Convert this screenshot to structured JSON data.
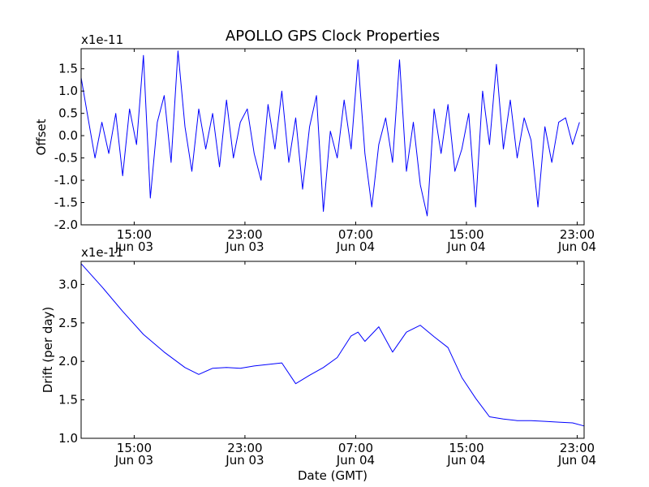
{
  "chart_data": [
    {
      "type": "line",
      "title": "APOLLO GPS Clock Properties",
      "ylabel": "Offset",
      "xlabel": "",
      "y_scale_label": "x1e-11",
      "x_ticks": [
        {
          "time": "15:00",
          "day": "Jun 03"
        },
        {
          "time": "23:00",
          "day": "Jun 03"
        },
        {
          "time": "07:00",
          "day": "Jun 04"
        },
        {
          "time": "15:00",
          "day": "Jun 04"
        },
        {
          "time": "23:00",
          "day": "Jun 04"
        }
      ],
      "y_ticks": [
        "1.5",
        "1.0",
        "0.5",
        "0.0",
        "-0.5",
        "-1.0",
        "-1.5",
        "-2.0"
      ],
      "y_tick_values": [
        1.5,
        1.0,
        0.5,
        0.0,
        -0.5,
        -1.0,
        -1.5,
        -2.0
      ],
      "ylim": [
        -2.0,
        1.95
      ],
      "xlim": [
        "2011-06-03T11:10",
        "2011-06-04T23:30"
      ],
      "series": [
        {
          "color": "#0000ff",
          "x": [
            "2011-06-03T11:10",
            "2011-06-03T11:40",
            "2011-06-03T12:10",
            "2011-06-03T12:40",
            "2011-06-03T13:10",
            "2011-06-03T13:40",
            "2011-06-03T14:10",
            "2011-06-03T14:40",
            "2011-06-03T15:10",
            "2011-06-03T15:40",
            "2011-06-03T16:10",
            "2011-06-03T16:40",
            "2011-06-03T17:10",
            "2011-06-03T17:40",
            "2011-06-03T18:10",
            "2011-06-03T18:40",
            "2011-06-03T19:10",
            "2011-06-03T19:40",
            "2011-06-03T20:10",
            "2011-06-03T20:40",
            "2011-06-03T21:10",
            "2011-06-03T21:40",
            "2011-06-03T22:10",
            "2011-06-03T22:40",
            "2011-06-03T23:10",
            "2011-06-03T23:40",
            "2011-06-04T00:10",
            "2011-06-04T00:40",
            "2011-06-04T01:10",
            "2011-06-04T01:40",
            "2011-06-04T02:10",
            "2011-06-04T02:40",
            "2011-06-04T03:10",
            "2011-06-04T03:40",
            "2011-06-04T04:10",
            "2011-06-04T04:40",
            "2011-06-04T05:10",
            "2011-06-04T05:40",
            "2011-06-04T06:10",
            "2011-06-04T06:40",
            "2011-06-04T07:10",
            "2011-06-04T07:40",
            "2011-06-04T08:10",
            "2011-06-04T08:40",
            "2011-06-04T09:10",
            "2011-06-04T09:40",
            "2011-06-04T10:10",
            "2011-06-04T10:40",
            "2011-06-04T11:10",
            "2011-06-04T11:40",
            "2011-06-04T12:10",
            "2011-06-04T12:40",
            "2011-06-04T13:10",
            "2011-06-04T13:40",
            "2011-06-04T14:10",
            "2011-06-04T14:40",
            "2011-06-04T15:10",
            "2011-06-04T15:40",
            "2011-06-04T16:10",
            "2011-06-04T16:40",
            "2011-06-04T17:10",
            "2011-06-04T17:40",
            "2011-06-04T18:10",
            "2011-06-04T18:40",
            "2011-06-04T19:10",
            "2011-06-04T19:40",
            "2011-06-04T20:10",
            "2011-06-04T20:40",
            "2011-06-04T21:10",
            "2011-06-04T21:40",
            "2011-06-04T22:10",
            "2011-06-04T22:40",
            "2011-06-04T23:10"
          ],
          "values": [
            1.3,
            0.4,
            -0.5,
            0.3,
            -0.4,
            0.5,
            -0.9,
            0.6,
            -0.2,
            1.8,
            -1.4,
            0.3,
            0.9,
            -0.6,
            1.9,
            0.2,
            -0.8,
            0.6,
            -0.3,
            0.5,
            -0.7,
            0.8,
            -0.5,
            0.3,
            0.6,
            -0.4,
            -1.0,
            0.7,
            -0.3,
            1.0,
            -0.6,
            0.4,
            -1.2,
            0.2,
            0.9,
            -1.7,
            0.1,
            -0.5,
            0.8,
            -0.3,
            1.7,
            -0.4,
            -1.6,
            -0.2,
            0.4,
            -0.6,
            1.7,
            -0.8,
            0.3,
            -1.1,
            -1.8,
            0.6,
            -0.4,
            0.7,
            -0.8,
            -0.3,
            0.5,
            -1.6,
            1.0,
            -0.2,
            1.6,
            -0.3,
            0.8,
            -0.5,
            0.4,
            -0.1,
            -1.6,
            0.2,
            -0.6,
            0.3,
            0.4,
            -0.2,
            0.3
          ]
        }
      ]
    },
    {
      "type": "line",
      "title": "",
      "ylabel": "Drift (per day)",
      "xlabel": "Date (GMT)",
      "y_scale_label": "x1e-11",
      "x_ticks": [
        {
          "time": "15:00",
          "day": "Jun 03"
        },
        {
          "time": "23:00",
          "day": "Jun 03"
        },
        {
          "time": "07:00",
          "day": "Jun 04"
        },
        {
          "time": "15:00",
          "day": "Jun 04"
        },
        {
          "time": "23:00",
          "day": "Jun 04"
        }
      ],
      "y_ticks": [
        "3.0",
        "2.5",
        "2.0",
        "1.5",
        "1.0"
      ],
      "y_tick_values": [
        3.0,
        2.5,
        2.0,
        1.5,
        1.0
      ],
      "ylim": [
        1.0,
        3.3
      ],
      "xlim": [
        "2011-06-03T11:10",
        "2011-06-04T23:30"
      ],
      "series": [
        {
          "color": "#0000ff",
          "x": [
            "2011-06-03T11:10",
            "2011-06-03T12:40",
            "2011-06-03T14:10",
            "2011-06-03T15:40",
            "2011-06-03T17:10",
            "2011-06-03T18:40",
            "2011-06-03T19:40",
            "2011-06-03T20:40",
            "2011-06-03T21:40",
            "2011-06-03T22:40",
            "2011-06-03T23:40",
            "2011-06-04T00:40",
            "2011-06-04T01:40",
            "2011-06-04T02:40",
            "2011-06-04T03:40",
            "2011-06-04T04:40",
            "2011-06-04T05:40",
            "2011-06-04T06:40",
            "2011-06-04T07:10",
            "2011-06-04T07:40",
            "2011-06-04T08:40",
            "2011-06-04T09:40",
            "2011-06-04T10:40",
            "2011-06-04T11:40",
            "2011-06-04T12:40",
            "2011-06-04T13:40",
            "2011-06-04T14:40",
            "2011-06-04T15:40",
            "2011-06-04T16:40",
            "2011-06-04T17:40",
            "2011-06-04T18:40",
            "2011-06-04T19:40",
            "2011-06-04T20:40",
            "2011-06-04T21:40",
            "2011-06-04T22:40",
            "2011-06-04T23:30"
          ],
          "values": [
            3.27,
            2.97,
            2.65,
            2.35,
            2.12,
            1.92,
            1.83,
            1.91,
            1.92,
            1.91,
            1.94,
            1.96,
            1.98,
            1.71,
            1.82,
            1.92,
            2.05,
            2.33,
            2.38,
            2.26,
            2.45,
            2.12,
            2.38,
            2.47,
            2.32,
            2.18,
            1.79,
            1.52,
            1.28,
            1.25,
            1.23,
            1.23,
            1.22,
            1.21,
            1.2,
            1.16
          ]
        }
      ]
    }
  ]
}
